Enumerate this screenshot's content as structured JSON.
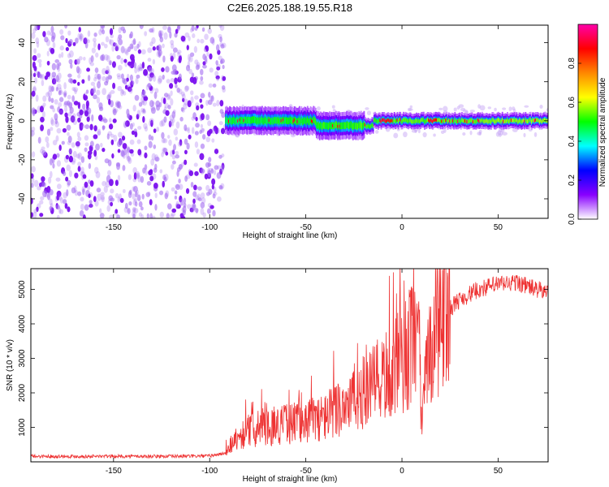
{
  "figure": {
    "title": "C2E6.2025.188.19.55.R18"
  },
  "chart_data": [
    {
      "type": "heatmap",
      "xlabel": "Height of straight line (km)",
      "ylabel": "Frequency (Hz)",
      "xlim": [
        -193,
        76
      ],
      "ylim": [
        -50,
        49
      ],
      "x_ticks": [
        -150,
        -100,
        -50,
        0,
        50
      ],
      "y_ticks": [
        -40,
        -20,
        0,
        20,
        40
      ],
      "noise_region_x": [
        -193,
        -92
      ],
      "signal_region_x": [
        -92,
        76
      ],
      "signal_frequency_hz": 0,
      "colorbar": {
        "label": "Normalized spectral amplitude",
        "range": [
          0,
          1
        ],
        "ticks": [
          0.0,
          0.2,
          0.4,
          0.6,
          0.8
        ],
        "colors": [
          "#ffffff",
          "#8800ff",
          "#0000ff",
          "#00ffff",
          "#00ff00",
          "#ffff00",
          "#ff8800",
          "#ff0000",
          "#ff00aa"
        ]
      }
    },
    {
      "type": "line",
      "xlabel": "Height of straight line (km)",
      "ylabel": "SNR (10 * v/v)",
      "xlim": [
        -193,
        76
      ],
      "ylim": [
        0,
        5600
      ],
      "x_ticks": [
        -150,
        -100,
        -50,
        0,
        50
      ],
      "y_ticks": [
        1000,
        2000,
        3000,
        4000,
        5000
      ],
      "color": "#ee3333",
      "trend": {
        "x": [
          -193,
          -120,
          -100,
          -92,
          -88,
          -80,
          -60,
          -40,
          -30,
          -20,
          -10,
          0,
          5,
          9,
          10,
          15,
          20,
          30,
          40,
          50,
          60,
          70,
          76
        ],
        "y": [
          160,
          160,
          170,
          250,
          600,
          900,
          1100,
          1300,
          1700,
          2000,
          2400,
          2900,
          3400,
          3200,
          1200,
          3500,
          4200,
          4700,
          5000,
          5150,
          5200,
          5000,
          4900
        ]
      }
    }
  ]
}
